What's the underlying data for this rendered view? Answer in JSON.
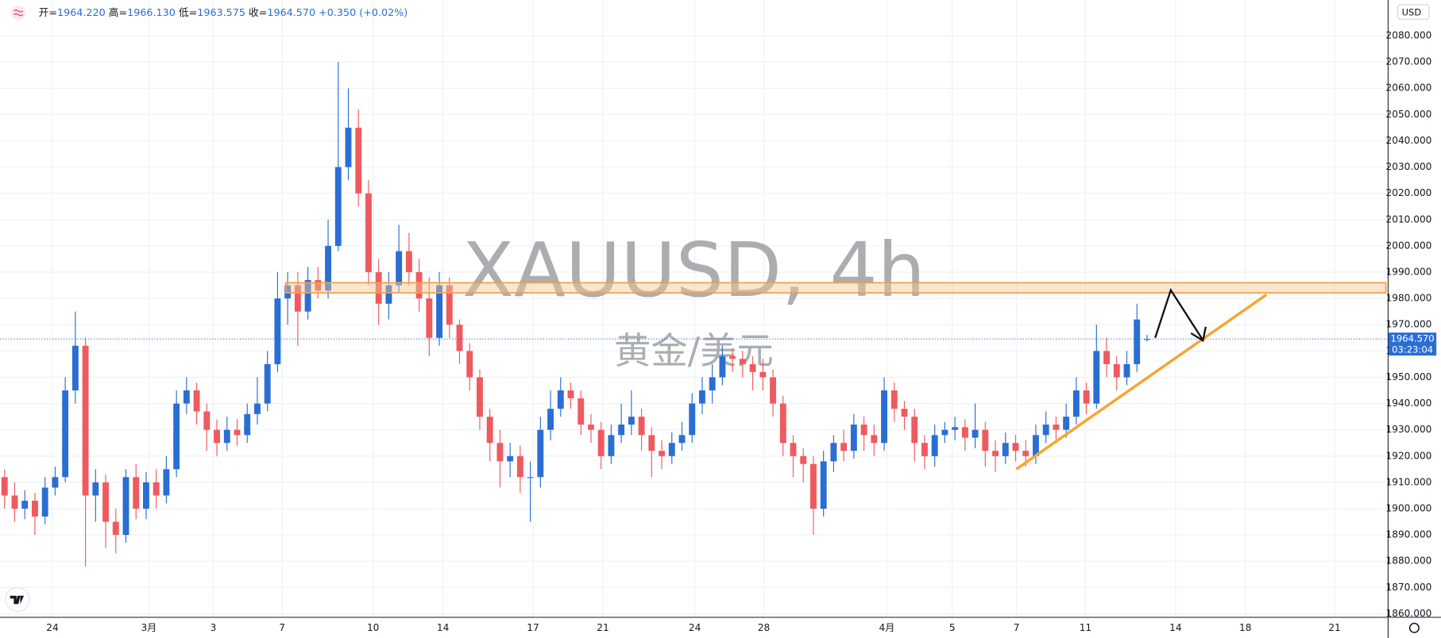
{
  "chart_data": {
    "type": "candlestick",
    "symbol_watermark": "XAUUSD, 4h",
    "name_watermark": "黄金/美元",
    "ohlc_legend": [
      {
        "label": "开=",
        "value": "1964.220"
      },
      {
        "label": "高=",
        "value": "1966.130"
      },
      {
        "label": "低=",
        "value": "1963.575"
      },
      {
        "label": "收=",
        "value": "1964.570"
      }
    ],
    "change": "+0.350 (+0.02%)",
    "currency": "USD",
    "last_price": {
      "value": 1964.57,
      "label": "1964.570"
    },
    "countdown": "03:23:04",
    "up_color": "#2a6ed4",
    "down_color": "#ef5a5f",
    "grid": true,
    "xlim": [
      -0.45,
      136.8
    ],
    "xticks": [
      {
        "value": 4.73,
        "label": "24"
      },
      {
        "value": 14.27,
        "label": "3月"
      },
      {
        "value": 20.64,
        "label": "3"
      },
      {
        "value": 27.45,
        "label": "7"
      },
      {
        "value": 36.45,
        "label": "10"
      },
      {
        "value": 43.36,
        "label": "14"
      },
      {
        "value": 52.27,
        "label": "17"
      },
      {
        "value": 59.18,
        "label": "21"
      },
      {
        "value": 68.27,
        "label": "24"
      },
      {
        "value": 75.09,
        "label": "28"
      },
      {
        "value": 87.27,
        "label": "4月"
      },
      {
        "value": 93.73,
        "label": "5"
      },
      {
        "value": 100.09,
        "label": "7"
      },
      {
        "value": 106.91,
        "label": "11"
      },
      {
        "value": 115.82,
        "label": "14"
      },
      {
        "value": 122.73,
        "label": "18"
      },
      {
        "value": 131.55,
        "label": "21"
      }
    ],
    "ylim": [
      1858.8,
      2093.6
    ],
    "yticks": [
      {
        "value": 1860,
        "label": "1860.000"
      },
      {
        "value": 1870,
        "label": "1870.000"
      },
      {
        "value": 1880,
        "label": "1880.000"
      },
      {
        "value": 1890,
        "label": "1890.000"
      },
      {
        "value": 1900,
        "label": "1900.000"
      },
      {
        "value": 1910,
        "label": "1910.000"
      },
      {
        "value": 1920,
        "label": "1920.000"
      },
      {
        "value": 1930,
        "label": "1930.000"
      },
      {
        "value": 1940,
        "label": "1940.000"
      },
      {
        "value": 1950,
        "label": "1950.000"
      },
      {
        "value": 1960,
        "label": "1960.000"
      },
      {
        "value": 1970,
        "label": "1970.000"
      },
      {
        "value": 1980,
        "label": "1980.000"
      },
      {
        "value": 1990,
        "label": "1990.000"
      },
      {
        "value": 2000,
        "label": "2000.000"
      },
      {
        "value": 2010,
        "label": "2010.000"
      },
      {
        "value": 2020,
        "label": "2020.000"
      },
      {
        "value": 2030,
        "label": "2030.000"
      },
      {
        "value": 2040,
        "label": "2040.000"
      },
      {
        "value": 2050,
        "label": "2050.000"
      },
      {
        "value": 2060,
        "label": "2060.000"
      },
      {
        "value": 2070,
        "label": "2070.000"
      },
      {
        "value": 2080,
        "label": "2080.000"
      }
    ],
    "open": [
      1912,
      1905,
      1900,
      1903,
      1897,
      1908,
      1912,
      1945,
      1962,
      1905,
      1910,
      1895,
      1890,
      1912,
      1900,
      1910,
      1905,
      1915,
      1940,
      1945,
      1937,
      1930,
      1925,
      1930,
      1928,
      1936,
      1940,
      1955,
      1980,
      1985,
      1975,
      1987,
      1983,
      2000,
      2030,
      2045,
      2020,
      1990,
      1978,
      1985,
      1998,
      1990,
      1980,
      1965,
      1985,
      1970,
      1960,
      1950,
      1935,
      1925,
      1918,
      1920,
      1912,
      1912,
      1930,
      1938,
      1945,
      1942,
      1932,
      1930,
      1920,
      1928,
      1932,
      1935,
      1928,
      1922,
      1920,
      1925,
      1928,
      1940,
      1945,
      1950,
      1958,
      1957,
      1955,
      1952,
      1950,
      1940,
      1925,
      1920,
      1917,
      1900,
      1918,
      1925,
      1922,
      1932,
      1928,
      1925,
      1945,
      1938,
      1935,
      1925,
      1920,
      1928,
      1930,
      1931,
      1927,
      1930,
      1922,
      1920,
      1925,
      1922,
      1920,
      1928,
      1932,
      1930,
      1935,
      1945,
      1940,
      1960,
      1955,
      1950,
      1955,
      1964.22
    ],
    "high": [
      1915,
      1910,
      1907,
      1906,
      1912,
      1916,
      1950,
      1975,
      1965,
      1915,
      1913,
      1900,
      1915,
      1917,
      1914,
      1915,
      1920,
      1945,
      1950,
      1948,
      1940,
      1934,
      1935,
      1934,
      1940,
      1950,
      1960,
      1990,
      1990,
      1990,
      1992,
      1992,
      2010,
      2070,
      2060,
      2052,
      2025,
      1995,
      1990,
      2008,
      2005,
      1995,
      1988,
      1990,
      1988,
      1972,
      1963,
      1953,
      1938,
      1930,
      1925,
      1924,
      1918,
      1935,
      1945,
      1950,
      1948,
      1945,
      1936,
      1933,
      1932,
      1940,
      1945,
      1938,
      1931,
      1926,
      1929,
      1933,
      1944,
      1950,
      1955,
      1962,
      1961,
      1960,
      1958,
      1957,
      1953,
      1943,
      1928,
      1923,
      1920,
      1922,
      1928,
      1930,
      1936,
      1935,
      1932,
      1950,
      1948,
      1941,
      1938,
      1928,
      1932,
      1933,
      1935,
      1934,
      1940,
      1933,
      1926,
      1929,
      1928,
      1926,
      1932,
      1937,
      1935,
      1940,
      1950,
      1948,
      1970,
      1965,
      1958,
      1960,
      1978,
      1966.13
    ],
    "low": [
      1900,
      1895,
      1896,
      1890,
      1894,
      1905,
      1910,
      1940,
      1878,
      1895,
      1885,
      1883,
      1887,
      1896,
      1896,
      1900,
      1902,
      1912,
      1936,
      1932,
      1922,
      1920,
      1922,
      1924,
      1925,
      1932,
      1937,
      1952,
      1970,
      1962,
      1972,
      1980,
      1980,
      1998,
      2025,
      2015,
      1985,
      1970,
      1972,
      1982,
      1985,
      1975,
      1958,
      1962,
      1965,
      1955,
      1945,
      1930,
      1918,
      1908,
      1912,
      1906,
      1895,
      1908,
      1926,
      1935,
      1938,
      1928,
      1925,
      1915,
      1917,
      1925,
      1928,
      1922,
      1912,
      1915,
      1917,
      1922,
      1925,
      1936,
      1940,
      1947,
      1952,
      1950,
      1945,
      1945,
      1935,
      1920,
      1912,
      1910,
      1890,
      1897,
      1914,
      1918,
      1919,
      1922,
      1920,
      1922,
      1933,
      1930,
      1918,
      1915,
      1916,
      1925,
      1926,
      1922,
      1923,
      1916,
      1914,
      1917,
      1918,
      1916,
      1917,
      1925,
      1926,
      1927,
      1932,
      1936,
      1938,
      1950,
      1945,
      1947,
      1952,
      1963.575
    ],
    "close": [
      1905,
      1900,
      1903,
      1897,
      1908,
      1912,
      1945,
      1962,
      1905,
      1910,
      1895,
      1890,
      1912,
      1900,
      1910,
      1905,
      1915,
      1940,
      1945,
      1937,
      1930,
      1925,
      1930,
      1928,
      1936,
      1940,
      1955,
      1980,
      1985,
      1975,
      1987,
      1983,
      2000,
      2030,
      2045,
      2020,
      1990,
      1978,
      1985,
      1998,
      1990,
      1980,
      1965,
      1985,
      1970,
      1960,
      1950,
      1935,
      1925,
      1918,
      1920,
      1912,
      1912,
      1930,
      1938,
      1945,
      1942,
      1932,
      1930,
      1920,
      1928,
      1932,
      1935,
      1928,
      1922,
      1920,
      1925,
      1928,
      1940,
      1945,
      1950,
      1958,
      1957,
      1955,
      1952,
      1950,
      1940,
      1925,
      1920,
      1917,
      1900,
      1918,
      1925,
      1922,
      1932,
      1928,
      1925,
      1945,
      1938,
      1935,
      1925,
      1920,
      1928,
      1930,
      1931,
      1927,
      1930,
      1922,
      1920,
      1925,
      1922,
      1920,
      1928,
      1932,
      1930,
      1935,
      1945,
      1940,
      1960,
      1955,
      1950,
      1955,
      1972,
      1964.57
    ]
  }
}
